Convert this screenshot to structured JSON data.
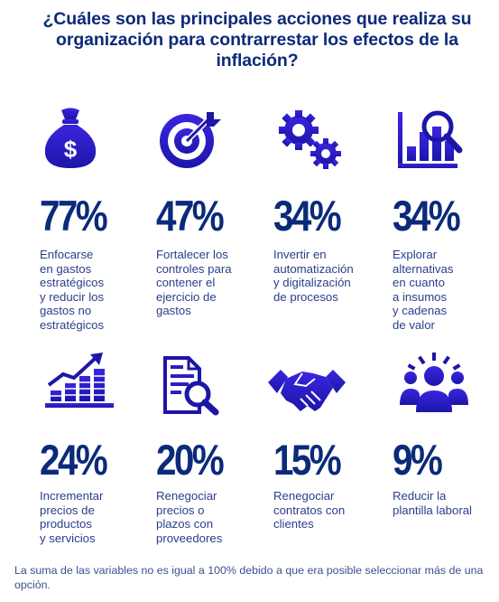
{
  "title": "¿Cuáles son las principales acciones que realiza su organización para contrarrestar los efectos de la inflación?",
  "colors": {
    "primary": "#0b2a7a",
    "accent": "#2b1ecf",
    "text": "#2a3e8a"
  },
  "chart_data": {
    "type": "table",
    "title": "¿Cuáles son las principales acciones que realiza su organización para contrarrestar los efectos de la inflación?",
    "categories": [
      "Enfocarse en gastos estratégicos y reducir los gastos no estratégicos",
      "Fortalecer los controles para contener el ejercicio de gastos",
      "Invertir en automatización y digitalización de procesos",
      "Explorar alternativas en cuanto a insumos y cadenas de valor",
      "Incrementar precios de productos y servicios",
      "Renegociar precios o plazos con proveedores",
      "Renegociar contratos con clientes",
      "Reducir la plantilla laboral"
    ],
    "values": [
      77,
      47,
      34,
      34,
      24,
      20,
      15,
      9
    ],
    "unit": "%"
  },
  "items": [
    {
      "pct": "77%",
      "label": "Enfocarse\nen gastos\nestratégicos\ny reducir los\ngastos no\nestratégicos",
      "icon": "money-bag-icon"
    },
    {
      "pct": "47%",
      "label": "Fortalecer los\ncontroles para\ncontener el\nejercicio de\ngastos",
      "icon": "target-icon"
    },
    {
      "pct": "34%",
      "label": "Invertir en\nautomatización\ny digitalización\nde procesos",
      "icon": "gears-icon"
    },
    {
      "pct": "34%",
      "label": "Explorar\nalternativas\nen cuanto\na insumos\ny cadenas\nde valor",
      "icon": "chart-magnifier-icon"
    },
    {
      "pct": "24%",
      "label": "Incrementar\nprecios de\nproductos\ny servicios",
      "icon": "growth-chart-icon"
    },
    {
      "pct": "20%",
      "label": "Renegociar\nprecios o\nplazos con\nproveedores",
      "icon": "document-search-icon"
    },
    {
      "pct": "15%",
      "label": "Renegociar\ncontratos con\nclientes",
      "icon": "handshake-icon"
    },
    {
      "pct": "9%",
      "label": "Reducir la\nplantilla laboral",
      "icon": "team-icon"
    }
  ],
  "note": "La suma de las variables no es igual a 100% debido a que era posible seleccionar más de una opción."
}
